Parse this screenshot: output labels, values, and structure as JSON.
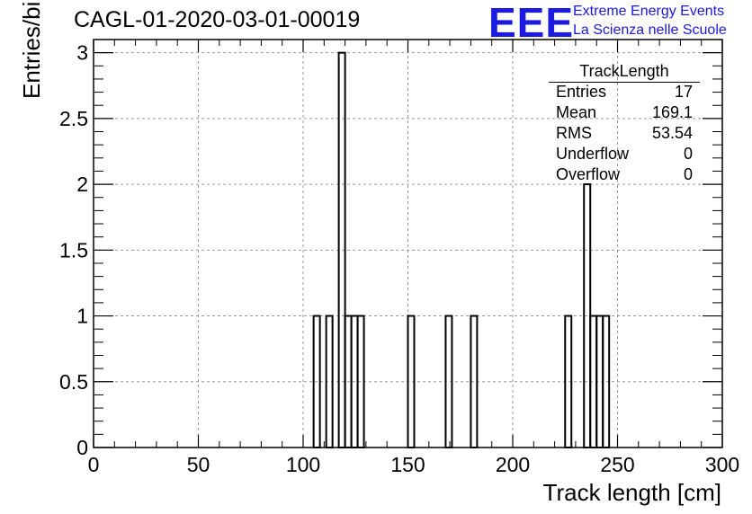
{
  "title": "CAGL-01-2020-03-01-00019",
  "logo": {
    "mark": "EEE",
    "line1": "Extreme Energy Events",
    "line2": "La Scienza nelle Scuole",
    "color": "#1a1ae0"
  },
  "stats_box": {
    "title": "TrackLength",
    "rows": [
      {
        "label": "Entries",
        "value": "17"
      },
      {
        "label": "Mean",
        "value": "169.1"
      },
      {
        "label": "RMS",
        "value": "53.54"
      },
      {
        "label": "Underflow",
        "value": "0"
      },
      {
        "label": "Overflow",
        "value": "0"
      }
    ]
  },
  "chart_data": {
    "type": "bar",
    "title": "CAGL-01-2020-03-01-00019",
    "xlabel": "Track length [cm]",
    "ylabel": "Entries/bin",
    "xlim": [
      0,
      300
    ],
    "ylim": [
      0,
      3.1
    ],
    "x_ticks": [
      "0",
      "50",
      "100",
      "150",
      "200",
      "250",
      "300"
    ],
    "y_ticks": [
      "0",
      "0.5",
      "1",
      "1.5",
      "2",
      "2.5",
      "3"
    ],
    "grid": true,
    "bin_width": 3,
    "bins": [
      {
        "x": 105,
        "y": 1
      },
      {
        "x": 111,
        "y": 1
      },
      {
        "x": 117,
        "y": 3
      },
      {
        "x": 120,
        "y": 1
      },
      {
        "x": 123,
        "y": 1
      },
      {
        "x": 126,
        "y": 1
      },
      {
        "x": 150,
        "y": 1
      },
      {
        "x": 168,
        "y": 1
      },
      {
        "x": 180,
        "y": 1
      },
      {
        "x": 225,
        "y": 1
      },
      {
        "x": 234,
        "y": 2
      },
      {
        "x": 237,
        "y": 1
      },
      {
        "x": 240,
        "y": 1
      },
      {
        "x": 243,
        "y": 1
      }
    ]
  }
}
